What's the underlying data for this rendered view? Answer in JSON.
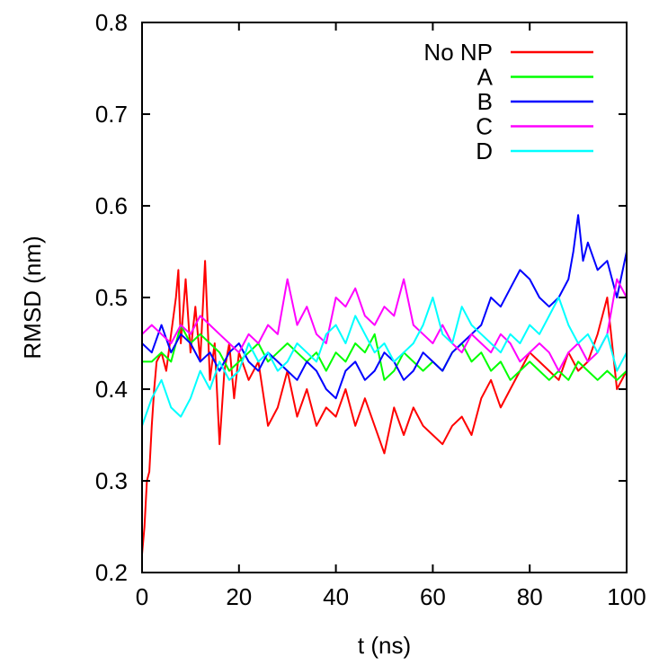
{
  "chart_data": {
    "type": "line",
    "title": "",
    "xlabel": "t (ns)",
    "ylabel": "RMSD (nm)",
    "xlim": [
      0,
      100
    ],
    "ylim": [
      0.2,
      0.8
    ],
    "xticks": [
      0,
      20,
      40,
      60,
      80,
      100
    ],
    "yticks": [
      0.2,
      0.3,
      0.4,
      0.5,
      0.6,
      0.7,
      0.8
    ],
    "xtick_labels": [
      "0",
      "20",
      "40",
      "60",
      "80",
      "100"
    ],
    "ytick_labels": [
      "0.2",
      "0.3",
      "0.4",
      "0.5",
      "0.6",
      "0.7",
      "0.8"
    ],
    "grid": false,
    "legend_position": "top-right",
    "series": [
      {
        "name": "No NP",
        "color": "#ff0000",
        "x": [
          0,
          0.5,
          1,
          1.5,
          2,
          2.5,
          3,
          4,
          5,
          6,
          7,
          7.5,
          8,
          9,
          10,
          11,
          12,
          13,
          14,
          15,
          16,
          17,
          18,
          19,
          20,
          22,
          24,
          26,
          28,
          30,
          32,
          34,
          36,
          38,
          40,
          42,
          44,
          46,
          48,
          50,
          52,
          54,
          56,
          58,
          60,
          62,
          64,
          66,
          68,
          70,
          72,
          74,
          76,
          78,
          80,
          82,
          84,
          86,
          88,
          90,
          92,
          94,
          96,
          98,
          100
        ],
        "y": [
          0.22,
          0.25,
          0.3,
          0.31,
          0.36,
          0.4,
          0.43,
          0.44,
          0.42,
          0.46,
          0.5,
          0.53,
          0.45,
          0.52,
          0.44,
          0.49,
          0.43,
          0.54,
          0.41,
          0.45,
          0.34,
          0.42,
          0.45,
          0.39,
          0.44,
          0.41,
          0.43,
          0.36,
          0.38,
          0.42,
          0.37,
          0.4,
          0.36,
          0.38,
          0.37,
          0.4,
          0.36,
          0.39,
          0.36,
          0.33,
          0.38,
          0.35,
          0.38,
          0.36,
          0.35,
          0.34,
          0.36,
          0.37,
          0.35,
          0.39,
          0.41,
          0.38,
          0.4,
          0.42,
          0.44,
          0.43,
          0.42,
          0.41,
          0.44,
          0.42,
          0.43,
          0.46,
          0.5,
          0.4,
          0.42
        ]
      },
      {
        "name": "A",
        "color": "#00ff00",
        "x": [
          0,
          2,
          4,
          6,
          8,
          10,
          12,
          14,
          16,
          18,
          20,
          22,
          24,
          26,
          28,
          30,
          32,
          34,
          36,
          38,
          40,
          42,
          44,
          46,
          48,
          50,
          52,
          54,
          56,
          58,
          60,
          62,
          64,
          66,
          68,
          70,
          72,
          74,
          76,
          78,
          80,
          82,
          84,
          86,
          88,
          90,
          92,
          94,
          96,
          98,
          100
        ],
        "y": [
          0.43,
          0.43,
          0.44,
          0.43,
          0.47,
          0.45,
          0.46,
          0.45,
          0.44,
          0.42,
          0.43,
          0.44,
          0.45,
          0.43,
          0.44,
          0.45,
          0.44,
          0.43,
          0.44,
          0.42,
          0.44,
          0.43,
          0.45,
          0.44,
          0.46,
          0.41,
          0.42,
          0.44,
          0.43,
          0.42,
          0.43,
          0.42,
          0.44,
          0.45,
          0.43,
          0.44,
          0.42,
          0.43,
          0.41,
          0.42,
          0.43,
          0.42,
          0.41,
          0.42,
          0.41,
          0.43,
          0.42,
          0.41,
          0.42,
          0.41,
          0.42
        ]
      },
      {
        "name": "B",
        "color": "#0000ff",
        "x": [
          0,
          2,
          4,
          6,
          8,
          10,
          12,
          14,
          16,
          18,
          20,
          22,
          24,
          26,
          28,
          30,
          32,
          34,
          36,
          38,
          40,
          42,
          44,
          46,
          48,
          50,
          52,
          54,
          56,
          58,
          60,
          62,
          64,
          66,
          68,
          70,
          72,
          74,
          76,
          78,
          80,
          82,
          84,
          86,
          88,
          89,
          90,
          91,
          92,
          94,
          96,
          98,
          100
        ],
        "y": [
          0.45,
          0.44,
          0.47,
          0.44,
          0.46,
          0.45,
          0.43,
          0.44,
          0.42,
          0.44,
          0.45,
          0.43,
          0.42,
          0.44,
          0.43,
          0.42,
          0.41,
          0.43,
          0.42,
          0.4,
          0.39,
          0.42,
          0.43,
          0.41,
          0.42,
          0.44,
          0.43,
          0.41,
          0.42,
          0.44,
          0.43,
          0.42,
          0.44,
          0.45,
          0.46,
          0.47,
          0.5,
          0.49,
          0.51,
          0.53,
          0.52,
          0.5,
          0.49,
          0.5,
          0.52,
          0.55,
          0.59,
          0.54,
          0.56,
          0.53,
          0.54,
          0.5,
          0.55
        ]
      },
      {
        "name": "C",
        "color": "#ff00ff",
        "x": [
          0,
          2,
          4,
          6,
          8,
          10,
          12,
          14,
          16,
          18,
          20,
          22,
          24,
          26,
          28,
          30,
          32,
          34,
          36,
          38,
          40,
          42,
          44,
          46,
          48,
          50,
          52,
          54,
          56,
          58,
          60,
          62,
          64,
          66,
          68,
          70,
          72,
          74,
          76,
          78,
          80,
          82,
          84,
          86,
          88,
          90,
          92,
          94,
          96,
          98,
          100
        ],
        "y": [
          0.46,
          0.47,
          0.46,
          0.45,
          0.47,
          0.46,
          0.48,
          0.47,
          0.46,
          0.45,
          0.44,
          0.46,
          0.45,
          0.47,
          0.46,
          0.52,
          0.47,
          0.49,
          0.46,
          0.45,
          0.5,
          0.49,
          0.51,
          0.48,
          0.47,
          0.49,
          0.48,
          0.52,
          0.47,
          0.46,
          0.45,
          0.47,
          0.45,
          0.44,
          0.46,
          0.45,
          0.44,
          0.46,
          0.45,
          0.43,
          0.44,
          0.45,
          0.44,
          0.42,
          0.44,
          0.45,
          0.43,
          0.44,
          0.46,
          0.52,
          0.5
        ]
      },
      {
        "name": "D",
        "color": "#00ffff",
        "x": [
          0,
          2,
          4,
          6,
          8,
          10,
          12,
          14,
          16,
          18,
          20,
          22,
          24,
          26,
          28,
          30,
          32,
          34,
          36,
          38,
          40,
          42,
          44,
          46,
          48,
          50,
          52,
          54,
          56,
          58,
          60,
          62,
          64,
          66,
          68,
          70,
          72,
          74,
          76,
          78,
          80,
          82,
          84,
          86,
          88,
          90,
          92,
          94,
          96,
          98,
          100
        ],
        "y": [
          0.36,
          0.39,
          0.41,
          0.38,
          0.37,
          0.39,
          0.42,
          0.4,
          0.43,
          0.41,
          0.42,
          0.45,
          0.43,
          0.44,
          0.42,
          0.43,
          0.45,
          0.44,
          0.43,
          0.46,
          0.47,
          0.45,
          0.48,
          0.46,
          0.44,
          0.45,
          0.43,
          0.44,
          0.45,
          0.47,
          0.5,
          0.46,
          0.45,
          0.49,
          0.47,
          0.46,
          0.45,
          0.44,
          0.46,
          0.45,
          0.47,
          0.46,
          0.48,
          0.5,
          0.47,
          0.45,
          0.46,
          0.44,
          0.46,
          0.42,
          0.44
        ]
      }
    ]
  }
}
